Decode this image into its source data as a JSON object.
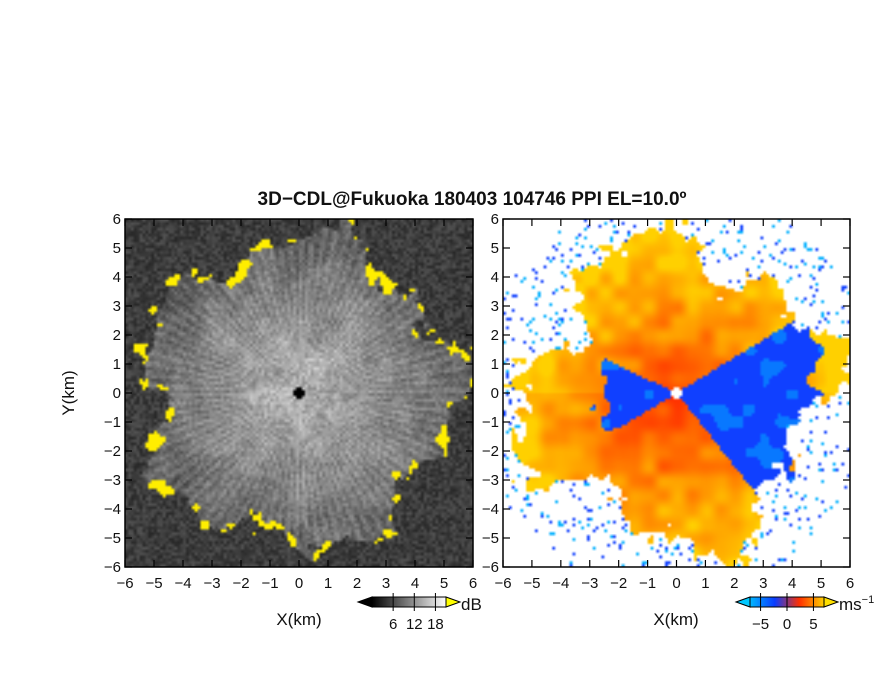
{
  "title": "3D−CDL@Fukuoka 180403 104746 PPI EL=10.0º",
  "chart_data": [
    {
      "type": "heatmap",
      "panel": "left",
      "xlabel": "X(km)",
      "ylabel": "Y(km)",
      "xlim": [
        -6,
        6
      ],
      "ylim": [
        -6,
        6
      ],
      "x_ticks": [
        "−6",
        "−5",
        "−4",
        "−3",
        "−2",
        "−1",
        "0",
        "1",
        "2",
        "3",
        "4",
        "5",
        "6"
      ],
      "y_ticks": [
        "6",
        "5",
        "4",
        "3",
        "2",
        "1",
        "0",
        "−1",
        "−2",
        "−3",
        "−4",
        "−5",
        "−6"
      ],
      "colorbar": {
        "unit": "dB",
        "ticks": [
          {
            "value": 6,
            "label": "6"
          },
          {
            "value": 12,
            "label": "12"
          },
          {
            "value": 18,
            "label": "18"
          }
        ],
        "range": [
          0,
          21
        ],
        "colors": [
          "#000000",
          "#ffffff"
        ],
        "over_color": "#ffff00"
      },
      "colors": {
        "low": "#151515",
        "high": "#f2f2f2",
        "saturated": "#ffee00"
      }
    },
    {
      "type": "heatmap",
      "panel": "right",
      "xlabel": "X(km)",
      "ylabel": "",
      "xlim": [
        -6,
        6
      ],
      "ylim": [
        -6,
        6
      ],
      "x_ticks": [
        "−6",
        "−5",
        "−4",
        "−3",
        "−2",
        "−1",
        "0",
        "1",
        "2",
        "3",
        "4",
        "5",
        "6"
      ],
      "y_ticks": [
        "6",
        "5",
        "4",
        "3",
        "2",
        "1",
        "0",
        "−1",
        "−2",
        "−3",
        "−4",
        "−5",
        "−6"
      ],
      "colorbar": {
        "unit": "ms",
        "unit_exponent": "−1",
        "ticks": [
          {
            "value": -5,
            "label": "−5"
          },
          {
            "value": 0,
            "label": "0"
          },
          {
            "value": 5,
            "label": "5"
          }
        ],
        "range": [
          -7,
          7
        ],
        "stops": [
          "#00b8ff",
          "#0a3cff",
          "#ff3000",
          "#ffd000"
        ],
        "under_color": "#00c8ff",
        "over_color": "#ffe000"
      },
      "colors": {
        "negative": "#1040ff",
        "positive": "#ff3a00",
        "fast_positive": "#ffd000",
        "fast_negative": "#00b0ff"
      }
    }
  ]
}
